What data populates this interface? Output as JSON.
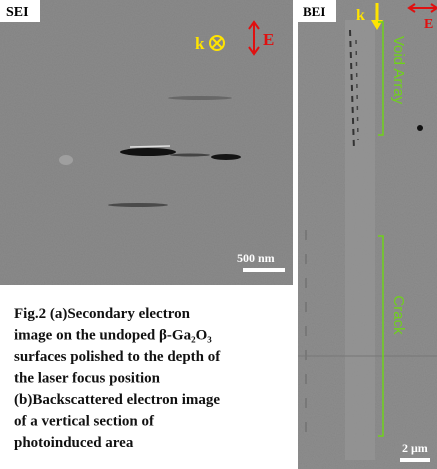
{
  "panel_a": {
    "label": "SEI",
    "k_label": "k",
    "e_label": "E",
    "scale_bar": "500 nm"
  },
  "panel_b": {
    "label": "BEI",
    "k_label": "k",
    "e_label": "E",
    "region_top": "Void Array",
    "region_bottom": "Crack",
    "scale_bar": "2 μm"
  },
  "caption": {
    "lines": [
      "Fig.2 (a)Secondary electron",
      "image on the undoped β-Ga₂O₃",
      "surfaces polished to the depth of",
      "the laser focus position",
      "(b)Backscattered electron image",
      "of a vertical section of",
      "photoinduced area"
    ]
  }
}
